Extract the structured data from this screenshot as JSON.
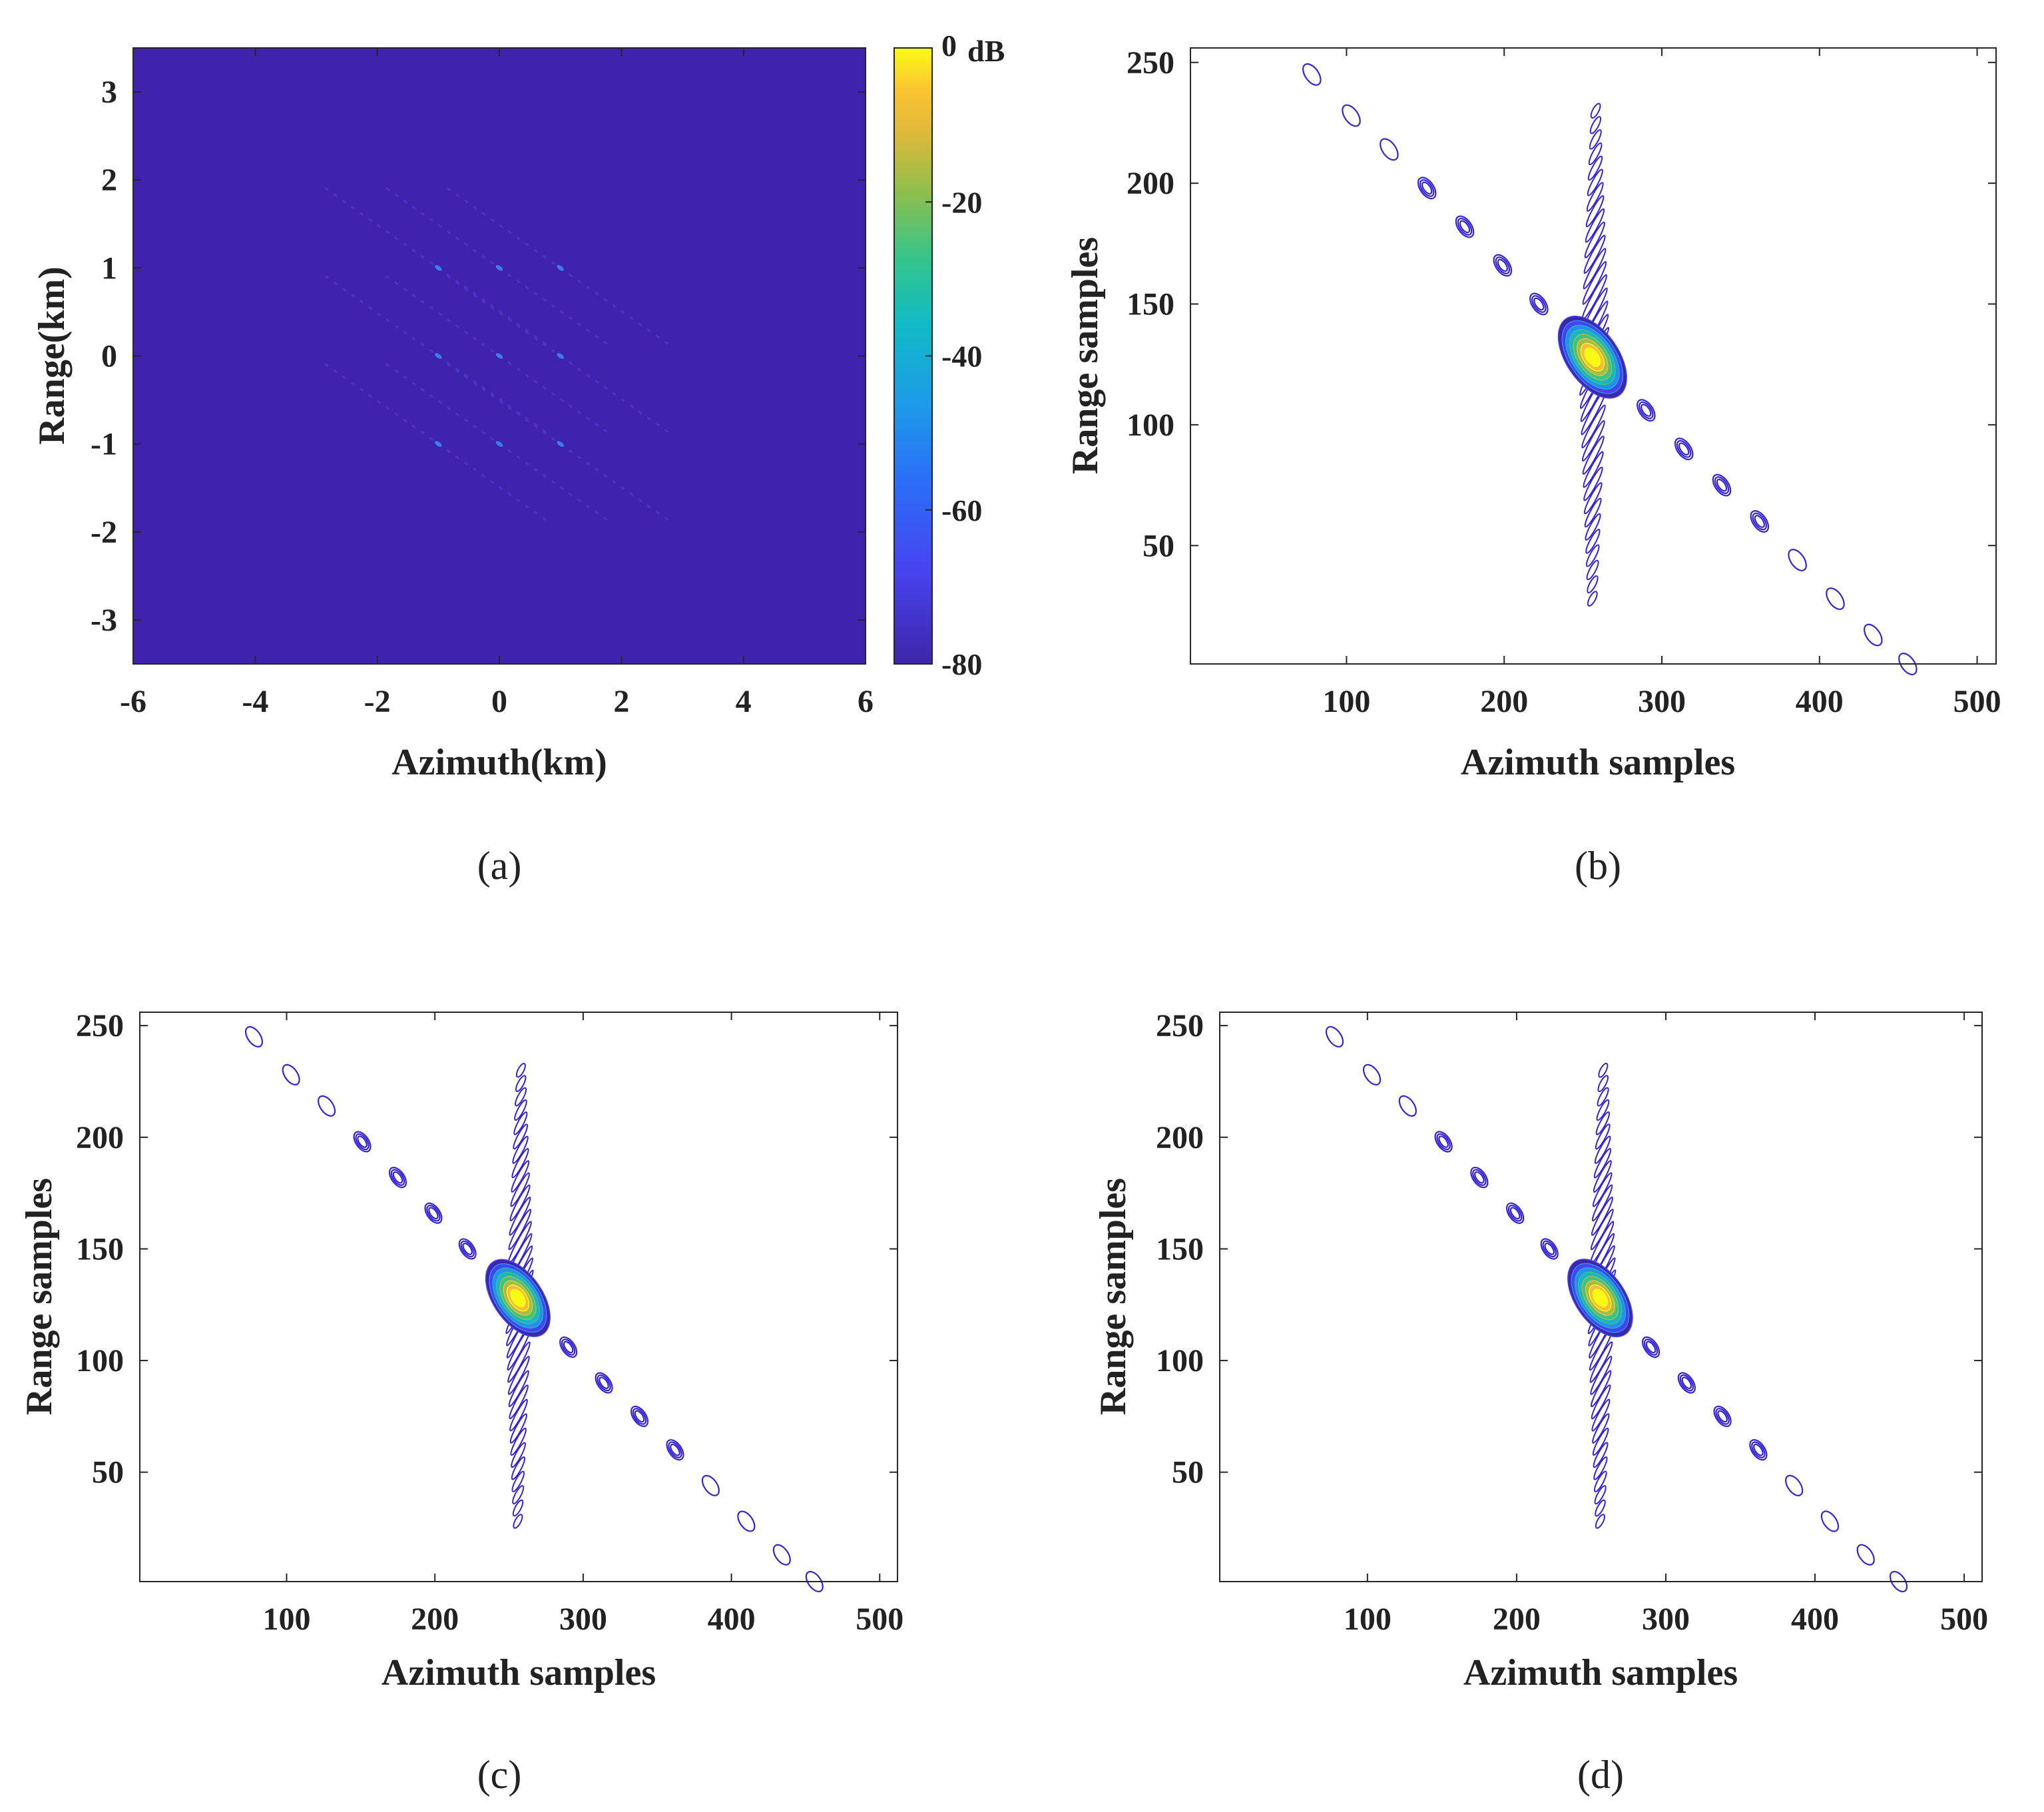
{
  "chart_data": [
    {
      "type": "heatmap",
      "panel_label": "(a)",
      "xlabel": "Azimuth(km)",
      "ylabel": "Range(km)",
      "xlim": [
        -6,
        6
      ],
      "ylim": [
        -3.5,
        3.5
      ],
      "xticks": [
        -6,
        -4,
        -2,
        0,
        2,
        4,
        6
      ],
      "yticks": [
        3,
        2,
        1,
        0,
        -1,
        -2,
        -3
      ],
      "colorbar": {
        "label": "dB",
        "range": [
          -80,
          0
        ],
        "ticks": [
          0,
          -20,
          -40,
          -60,
          -80
        ],
        "tick_labels": [
          "0",
          "-20",
          "-40",
          "-60",
          "-80"
        ]
      },
      "background_value_db": -80,
      "targets": [
        {
          "azimuth": -1,
          "range": 1,
          "value_db": -60
        },
        {
          "azimuth": 0,
          "range": 1,
          "value_db": -60
        },
        {
          "azimuth": 1,
          "range": 1,
          "value_db": -60
        },
        {
          "azimuth": -1,
          "range": 0,
          "value_db": -60
        },
        {
          "azimuth": 0,
          "range": 0,
          "value_db": -60
        },
        {
          "azimuth": 1,
          "range": 0,
          "value_db": -60
        },
        {
          "azimuth": -1,
          "range": -1,
          "value_db": -60
        },
        {
          "azimuth": 0,
          "range": -1,
          "value_db": -60
        },
        {
          "azimuth": 1,
          "range": -1,
          "value_db": -60
        }
      ]
    },
    {
      "type": "contour",
      "panel_label": "(b)",
      "xlabel": "Azimuth samples",
      "ylabel": "Range samples",
      "xlim": [
        1,
        512
      ],
      "ylim": [
        1,
        256
      ],
      "xticks": [
        100,
        200,
        300,
        400,
        500
      ],
      "yticks": [
        250,
        200,
        150,
        100,
        50
      ],
      "peak": {
        "azimuth": 256,
        "range": 128
      },
      "mainlobe_peak_label": "0 dB",
      "diagonal_sidelobes": [
        {
          "azimuth": 78,
          "range": 245
        },
        {
          "azimuth": 103,
          "range": 228
        },
        {
          "azimuth": 127,
          "range": 214
        },
        {
          "azimuth": 151,
          "range": 198
        },
        {
          "azimuth": 175,
          "range": 182
        },
        {
          "azimuth": 199,
          "range": 166
        },
        {
          "azimuth": 222,
          "range": 150
        },
        {
          "azimuth": 290,
          "range": 106
        },
        {
          "azimuth": 314,
          "range": 90
        },
        {
          "azimuth": 338,
          "range": 75
        },
        {
          "azimuth": 362,
          "range": 60
        },
        {
          "azimuth": 386,
          "range": 44
        },
        {
          "azimuth": 410,
          "range": 28
        },
        {
          "azimuth": 434,
          "range": 13
        },
        {
          "azimuth": 456,
          "range": 1
        }
      ],
      "vertical_sidelobe_span": {
        "top": {
          "azimuth": 258,
          "range": 230
        },
        "bottom": {
          "azimuth": 256,
          "range": 28
        }
      }
    },
    {
      "type": "contour",
      "panel_label": "(c)",
      "xlabel": "Azimuth samples",
      "ylabel": "Range samples",
      "xlim": [
        1,
        512
      ],
      "ylim": [
        1,
        256
      ],
      "xticks": [
        100,
        200,
        300,
        400,
        500
      ],
      "yticks": [
        250,
        200,
        150,
        100,
        50
      ],
      "peak": {
        "azimuth": 256,
        "range": 128
      },
      "diagonal_sidelobes": [
        {
          "azimuth": 78,
          "range": 245
        },
        {
          "azimuth": 103,
          "range": 228
        },
        {
          "azimuth": 127,
          "range": 214
        },
        {
          "azimuth": 151,
          "range": 198
        },
        {
          "azimuth": 175,
          "range": 182
        },
        {
          "azimuth": 199,
          "range": 166
        },
        {
          "azimuth": 222,
          "range": 150
        },
        {
          "azimuth": 290,
          "range": 106
        },
        {
          "azimuth": 314,
          "range": 90
        },
        {
          "azimuth": 338,
          "range": 75
        },
        {
          "azimuth": 362,
          "range": 60
        },
        {
          "azimuth": 386,
          "range": 44
        },
        {
          "azimuth": 410,
          "range": 28
        },
        {
          "azimuth": 434,
          "range": 13
        },
        {
          "azimuth": 456,
          "range": 1
        }
      ],
      "vertical_sidelobe_span": {
        "top": {
          "azimuth": 258,
          "range": 230
        },
        "bottom": {
          "azimuth": 256,
          "range": 28
        }
      }
    },
    {
      "type": "contour",
      "panel_label": "(d)",
      "xlabel": "Azimuth samples",
      "ylabel": "Range samples",
      "xlim": [
        1,
        512
      ],
      "ylim": [
        1,
        256
      ],
      "xticks": [
        100,
        200,
        300,
        400,
        500
      ],
      "yticks": [
        250,
        200,
        150,
        100,
        50
      ],
      "peak": {
        "azimuth": 256,
        "range": 128
      },
      "diagonal_sidelobes": [
        {
          "azimuth": 78,
          "range": 245
        },
        {
          "azimuth": 103,
          "range": 228
        },
        {
          "azimuth": 127,
          "range": 214
        },
        {
          "azimuth": 151,
          "range": 198
        },
        {
          "azimuth": 175,
          "range": 182
        },
        {
          "azimuth": 199,
          "range": 166
        },
        {
          "azimuth": 222,
          "range": 150
        },
        {
          "azimuth": 290,
          "range": 106
        },
        {
          "azimuth": 314,
          "range": 90
        },
        {
          "azimuth": 338,
          "range": 75
        },
        {
          "azimuth": 362,
          "range": 60
        },
        {
          "azimuth": 386,
          "range": 44
        },
        {
          "azimuth": 410,
          "range": 28
        },
        {
          "azimuth": 434,
          "range": 13
        },
        {
          "azimuth": 456,
          "range": 1
        }
      ],
      "vertical_sidelobe_span": {
        "top": {
          "azimuth": 258,
          "range": 230
        },
        "bottom": {
          "azimuth": 256,
          "range": 28
        }
      }
    }
  ],
  "colors": {
    "background_db": "#3f23ad",
    "contour_outer": "#3524d6",
    "colormap": [
      "#3e26a8",
      "#4743f0",
      "#2a8bf5",
      "#16b5c9",
      "#38c686",
      "#a2be47",
      "#f8ba3c",
      "#f9fb15"
    ]
  }
}
